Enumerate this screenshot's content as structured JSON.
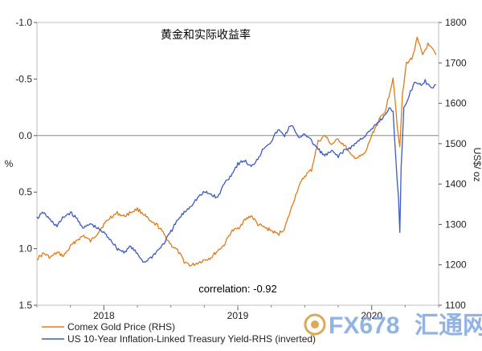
{
  "chart_data": {
    "type": "line",
    "title": "黄金和实际收益率",
    "annotation": "correlation: -0.92",
    "left_axis": {
      "label": "%",
      "inverted": true,
      "range": [
        -1.0,
        1.5
      ],
      "ticks": [
        "-1.0",
        "-0.5",
        "0.0",
        "0.5",
        "1.0",
        "1.5"
      ]
    },
    "right_axis": {
      "label": "US$/ oz",
      "range": [
        1100,
        1800
      ],
      "ticks": [
        "1100",
        "1200",
        "1300",
        "1400",
        "1500",
        "1600",
        "1700",
        "1800"
      ]
    },
    "x_axis": {
      "range": [
        2017.5,
        2020.5
      ],
      "tick_labels": [
        "2018",
        "2019",
        "2020"
      ]
    },
    "grid": "horizontal at 0.0",
    "legend_placement": "bottom-left",
    "series": [
      {
        "name": "Comex Gold Price (RHS)",
        "axis": "right",
        "color": "#e07b1a",
        "points": [
          [
            2017.5,
            1215
          ],
          [
            2017.55,
            1228
          ],
          [
            2017.6,
            1218
          ],
          [
            2017.65,
            1230
          ],
          [
            2017.7,
            1222
          ],
          [
            2017.75,
            1245
          ],
          [
            2017.8,
            1262
          ],
          [
            2017.85,
            1272
          ],
          [
            2017.9,
            1258
          ],
          [
            2017.95,
            1278
          ],
          [
            2018.0,
            1300
          ],
          [
            2018.05,
            1318
          ],
          [
            2018.1,
            1328
          ],
          [
            2018.15,
            1320
          ],
          [
            2018.2,
            1330
          ],
          [
            2018.25,
            1338
          ],
          [
            2018.3,
            1325
          ],
          [
            2018.35,
            1305
          ],
          [
            2018.4,
            1298
          ],
          [
            2018.45,
            1275
          ],
          [
            2018.5,
            1250
          ],
          [
            2018.55,
            1235
          ],
          [
            2018.6,
            1208
          ],
          [
            2018.65,
            1198
          ],
          [
            2018.7,
            1205
          ],
          [
            2018.75,
            1212
          ],
          [
            2018.8,
            1218
          ],
          [
            2018.85,
            1235
          ],
          [
            2018.9,
            1250
          ],
          [
            2018.95,
            1282
          ],
          [
            2019.0,
            1290
          ],
          [
            2019.05,
            1310
          ],
          [
            2019.1,
            1322
          ],
          [
            2019.15,
            1300
          ],
          [
            2019.2,
            1292
          ],
          [
            2019.25,
            1285
          ],
          [
            2019.3,
            1275
          ],
          [
            2019.35,
            1290
          ],
          [
            2019.4,
            1340
          ],
          [
            2019.45,
            1390
          ],
          [
            2019.5,
            1420
          ],
          [
            2019.55,
            1435
          ],
          [
            2019.6,
            1505
          ],
          [
            2019.65,
            1520
          ],
          [
            2019.7,
            1498
          ],
          [
            2019.75,
            1510
          ],
          [
            2019.8,
            1495
          ],
          [
            2019.85,
            1468
          ],
          [
            2019.9,
            1465
          ],
          [
            2019.95,
            1475
          ],
          [
            2020.0,
            1520
          ],
          [
            2020.05,
            1555
          ],
          [
            2020.1,
            1580
          ],
          [
            2020.13,
            1620
          ],
          [
            2020.16,
            1665
          ],
          [
            2020.19,
            1550
          ],
          [
            2020.21,
            1490
          ],
          [
            2020.23,
            1620
          ],
          [
            2020.26,
            1700
          ],
          [
            2020.3,
            1710
          ],
          [
            2020.34,
            1760
          ],
          [
            2020.38,
            1720
          ],
          [
            2020.42,
            1745
          ],
          [
            2020.46,
            1730
          ],
          [
            2020.48,
            1720
          ]
        ]
      },
      {
        "name": "US 10-Year Inflation-Linked Treasury Yield-RHS (inverted)",
        "axis": "left",
        "color": "#3a5bc7",
        "points": [
          [
            2017.5,
            0.73
          ],
          [
            2017.55,
            0.68
          ],
          [
            2017.6,
            0.75
          ],
          [
            2017.65,
            0.8
          ],
          [
            2017.7,
            0.72
          ],
          [
            2017.75,
            0.68
          ],
          [
            2017.8,
            0.74
          ],
          [
            2017.85,
            0.82
          ],
          [
            2017.9,
            0.78
          ],
          [
            2017.95,
            0.82
          ],
          [
            2018.0,
            0.86
          ],
          [
            2018.05,
            0.92
          ],
          [
            2018.1,
            1.0
          ],
          [
            2018.15,
            1.03
          ],
          [
            2018.2,
            0.98
          ],
          [
            2018.25,
            1.05
          ],
          [
            2018.3,
            1.12
          ],
          [
            2018.35,
            1.08
          ],
          [
            2018.4,
            1.02
          ],
          [
            2018.45,
            0.95
          ],
          [
            2018.5,
            0.85
          ],
          [
            2018.55,
            0.75
          ],
          [
            2018.6,
            0.68
          ],
          [
            2018.65,
            0.62
          ],
          [
            2018.7,
            0.55
          ],
          [
            2018.75,
            0.5
          ],
          [
            2018.8,
            0.52
          ],
          [
            2018.85,
            0.55
          ],
          [
            2018.9,
            0.42
          ],
          [
            2018.95,
            0.35
          ],
          [
            2019.0,
            0.25
          ],
          [
            2019.05,
            0.22
          ],
          [
            2019.1,
            0.28
          ],
          [
            2019.15,
            0.2
          ],
          [
            2019.2,
            0.1
          ],
          [
            2019.25,
            0.05
          ],
          [
            2019.3,
            -0.05
          ],
          [
            2019.35,
            0.0
          ],
          [
            2019.4,
            -0.1
          ],
          [
            2019.45,
            0.02
          ],
          [
            2019.5,
            -0.02
          ],
          [
            2019.55,
            0.05
          ],
          [
            2019.6,
            0.12
          ],
          [
            2019.65,
            0.18
          ],
          [
            2019.7,
            0.14
          ],
          [
            2019.75,
            0.18
          ],
          [
            2019.8,
            0.13
          ],
          [
            2019.85,
            0.1
          ],
          [
            2019.9,
            0.05
          ],
          [
            2019.95,
            0.0
          ],
          [
            2020.0,
            -0.05
          ],
          [
            2020.05,
            -0.12
          ],
          [
            2020.1,
            -0.18
          ],
          [
            2020.13,
            -0.25
          ],
          [
            2020.16,
            -0.2
          ],
          [
            2020.18,
            0.2
          ],
          [
            2020.2,
            0.55
          ],
          [
            2020.21,
            0.85
          ],
          [
            2020.22,
            0.3
          ],
          [
            2020.24,
            -0.25
          ],
          [
            2020.28,
            -0.35
          ],
          [
            2020.32,
            -0.48
          ],
          [
            2020.36,
            -0.45
          ],
          [
            2020.4,
            -0.48
          ],
          [
            2020.44,
            -0.42
          ],
          [
            2020.48,
            -0.45
          ]
        ]
      }
    ]
  },
  "watermark": {
    "brand_text": "FX678",
    "brand_cn": "汇通网",
    "colors": {
      "primary": "#7ea7e0",
      "secondary": "#f5a623",
      "circle": "#d89a3a"
    }
  }
}
